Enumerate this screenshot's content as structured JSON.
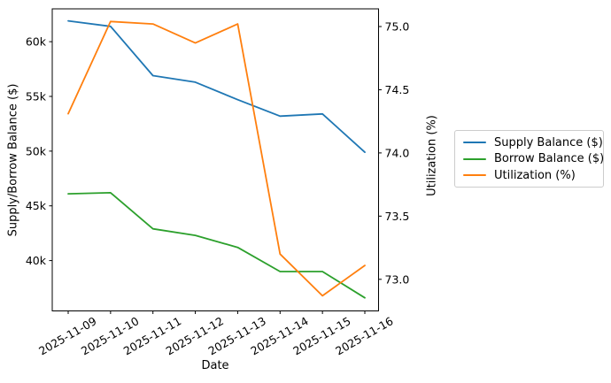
{
  "chart_data": {
    "type": "line",
    "title": "",
    "xlabel": "Date",
    "ylabel_left": "Supply/Borrow Balance ($)",
    "ylabel_right": "Utilization (%)",
    "grid": false,
    "legend_position": "outside-right",
    "x": [
      "2025-11-09",
      "2025-11-10",
      "2025-11-11",
      "2025-11-12",
      "2025-11-13",
      "2025-11-14",
      "2025-11-15",
      "2025-11-16"
    ],
    "series": [
      {
        "name": "Supply Balance ($)",
        "axis": "left",
        "color": "#1f77b4",
        "values": [
          61900,
          61400,
          56900,
          56300,
          54700,
          53200,
          53400,
          49900
        ]
      },
      {
        "name": "Borrow Balance ($)",
        "axis": "left",
        "color": "#2ca02c",
        "values": [
          46100,
          46200,
          42900,
          42300,
          41200,
          39000,
          39000,
          36600
        ]
      },
      {
        "name": "Utilization (%)",
        "axis": "right",
        "color": "#ff7f0e",
        "values": [
          74.31,
          75.04,
          75.02,
          74.87,
          75.02,
          73.2,
          72.87,
          73.11
        ]
      }
    ],
    "left_axis": {
      "ticks": [
        40000,
        45000,
        50000,
        55000,
        60000
      ],
      "tick_labels": [
        "40k",
        "45k",
        "50k",
        "55k",
        "60k"
      ],
      "range": [
        35400,
        63000
      ]
    },
    "right_axis": {
      "ticks": [
        73.0,
        73.5,
        74.0,
        74.5,
        75.0
      ],
      "tick_labels": [
        "73.0",
        "73.5",
        "74.0",
        "74.5",
        "75.0"
      ],
      "range": [
        72.75,
        75.14
      ]
    }
  }
}
